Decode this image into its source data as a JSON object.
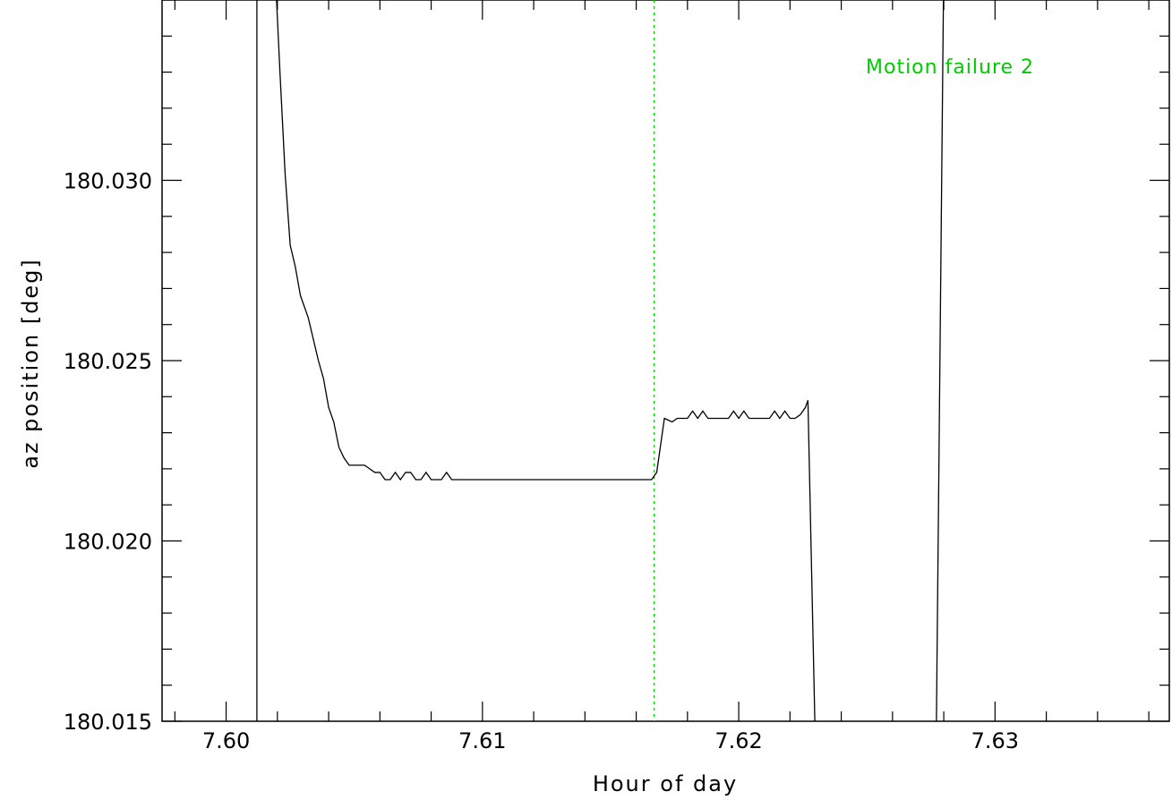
{
  "chart_data": {
    "type": "line",
    "title": "",
    "xlabel": "Hour of day",
    "ylabel": "az position [deg]",
    "xlim": [
      7.5975,
      7.6368
    ],
    "ylim": [
      180.015,
      180.035
    ],
    "grid": false,
    "x_major_ticks": [
      7.6,
      7.61,
      7.62,
      7.63
    ],
    "x_tick_labels": [
      "7.60",
      "7.61",
      "7.62",
      "7.63"
    ],
    "x_minor_step": 0.002,
    "y_major_ticks": [
      180.015,
      180.02,
      180.025,
      180.03
    ],
    "y_tick_labels": [
      "180.015",
      "180.020",
      "180.025",
      "180.030"
    ],
    "y_minor_step": 0.001,
    "series": [
      {
        "color": "#000000",
        "points": [
          [
            7.6012,
            180.014
          ],
          [
            7.6012,
            180.036
          ],
          [
            7.6019,
            180.036
          ],
          [
            7.6021,
            180.033
          ],
          [
            7.6023,
            180.0302
          ],
          [
            7.6025,
            180.0282
          ],
          [
            7.6027,
            180.0276
          ],
          [
            7.6029,
            180.0268
          ],
          [
            7.603,
            180.0266
          ],
          [
            7.6032,
            180.0262
          ],
          [
            7.6034,
            180.0256
          ],
          [
            7.6036,
            180.025
          ],
          [
            7.6038,
            180.0245
          ],
          [
            7.604,
            180.0237
          ],
          [
            7.6042,
            180.0233
          ],
          [
            7.6044,
            180.0226
          ],
          [
            7.6046,
            180.0223
          ],
          [
            7.6048,
            180.0221
          ],
          [
            7.605,
            180.0221
          ],
          [
            7.6052,
            180.0221
          ],
          [
            7.6054,
            180.0221
          ],
          [
            7.6056,
            180.022
          ],
          [
            7.6058,
            180.0219
          ],
          [
            7.606,
            180.0219
          ],
          [
            7.6062,
            180.0217
          ],
          [
            7.6064,
            180.0217
          ],
          [
            7.6066,
            180.0219
          ],
          [
            7.6068,
            180.0217
          ],
          [
            7.607,
            180.0219
          ],
          [
            7.6072,
            180.0219
          ],
          [
            7.6074,
            180.0217
          ],
          [
            7.6076,
            180.0217
          ],
          [
            7.6078,
            180.0219
          ],
          [
            7.608,
            180.0217
          ],
          [
            7.6082,
            180.0217
          ],
          [
            7.6084,
            180.0217
          ],
          [
            7.6086,
            180.0219
          ],
          [
            7.6088,
            180.0217
          ],
          [
            7.6166,
            180.0217
          ],
          [
            7.6168,
            180.0219
          ],
          [
            7.6171,
            180.0234
          ],
          [
            7.6174,
            180.0233
          ],
          [
            7.6176,
            180.0234
          ],
          [
            7.6178,
            180.0234
          ],
          [
            7.618,
            180.0234
          ],
          [
            7.6182,
            180.0236
          ],
          [
            7.6184,
            180.0234
          ],
          [
            7.6186,
            180.0236
          ],
          [
            7.6188,
            180.0234
          ],
          [
            7.619,
            180.0234
          ],
          [
            7.6192,
            180.0234
          ],
          [
            7.6194,
            180.0234
          ],
          [
            7.6196,
            180.0234
          ],
          [
            7.6198,
            180.0236
          ],
          [
            7.62,
            180.0234
          ],
          [
            7.6202,
            180.0236
          ],
          [
            7.6204,
            180.0234
          ],
          [
            7.6206,
            180.0234
          ],
          [
            7.6208,
            180.0234
          ],
          [
            7.621,
            180.0234
          ],
          [
            7.6212,
            180.0234
          ],
          [
            7.6214,
            180.0236
          ],
          [
            7.6216,
            180.0234
          ],
          [
            7.6218,
            180.0236
          ],
          [
            7.622,
            180.0234
          ],
          [
            7.6222,
            180.0234
          ],
          [
            7.6224,
            180.0235
          ],
          [
            7.6226,
            180.0237
          ],
          [
            7.6227,
            180.0239
          ],
          [
            7.623,
            180.014
          ]
        ]
      },
      {
        "color": "#000000",
        "points": [
          [
            7.6277,
            180.014
          ],
          [
            7.628,
            180.036
          ]
        ]
      }
    ],
    "vlines": [
      {
        "x": 7.6167,
        "color": "#00cc00",
        "style": "dotted"
      }
    ],
    "annotations": [
      {
        "text": "Motion failure 2",
        "color": "#00cc00"
      }
    ]
  }
}
